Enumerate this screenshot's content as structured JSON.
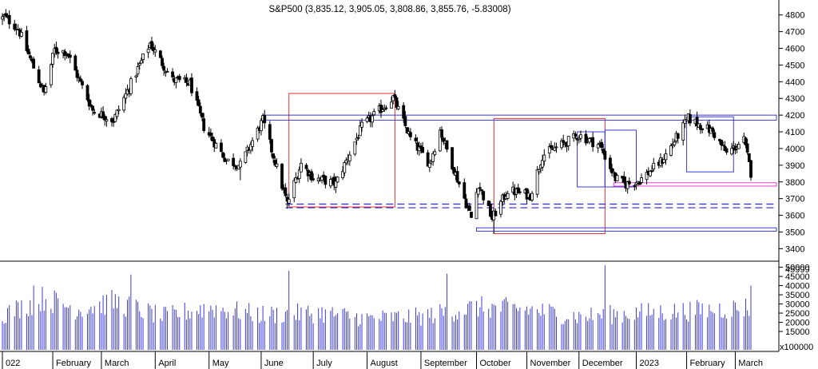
{
  "chart_data": {
    "type": "candlestick",
    "title": "S&P500 (3,835.12, 3,905.05, 3,808.86, 3,855.76, -5.83008)",
    "price_axis": {
      "ylim": [
        3330,
        4880
      ],
      "ticks": [
        3400,
        3500,
        3600,
        3700,
        3800,
        3900,
        4000,
        4100,
        4200,
        4300,
        4400,
        4500,
        4600,
        4700,
        4800
      ]
    },
    "volume_axis": {
      "ylim": [
        5000,
        52000
      ],
      "ticks": [
        15000,
        20000,
        25000,
        30000,
        35000,
        40000,
        45000,
        50000
      ],
      "tick_labels": [
        "15000",
        "20000",
        "25000",
        "30000",
        "35000",
        "40000",
        "45000",
        "50000"
      ],
      "top_label": "45999",
      "multiplier_label": "x100000"
    },
    "x_axis": {
      "start": "2022-01-03",
      "end": "2023-03-10",
      "labels": [
        {
          "date": "2022-01-03",
          "text": "022"
        },
        {
          "date": "2022-02-01",
          "text": "February"
        },
        {
          "date": "2022-03-01",
          "text": "March"
        },
        {
          "date": "2022-04-01",
          "text": "April"
        },
        {
          "date": "2022-05-02",
          "text": "May"
        },
        {
          "date": "2022-06-01",
          "text": "June"
        },
        {
          "date": "2022-07-01",
          "text": "July"
        },
        {
          "date": "2022-08-01",
          "text": "August"
        },
        {
          "date": "2022-09-01",
          "text": "September"
        },
        {
          "date": "2022-10-03",
          "text": "October"
        },
        {
          "date": "2022-11-01",
          "text": "November"
        },
        {
          "date": "2022-12-01",
          "text": "December"
        },
        {
          "date": "2023-01-03",
          "text": "2023"
        },
        {
          "date": "2023-02-01",
          "text": "February"
        },
        {
          "date": "2023-03-01",
          "text": "March"
        }
      ]
    },
    "path": [
      [
        "2022-01-03",
        4780
      ],
      [
        "2022-01-04",
        4790
      ],
      [
        "2022-01-12",
        4720
      ],
      [
        "2022-01-27",
        4330
      ],
      [
        "2022-02-02",
        4590
      ],
      [
        "2022-02-09",
        4580
      ],
      [
        "2022-02-24",
        4230
      ],
      [
        "2022-03-08",
        4170
      ],
      [
        "2022-03-29",
        4630
      ],
      [
        "2022-04-11",
        4410
      ],
      [
        "2022-04-21",
        4390
      ],
      [
        "2022-04-29",
        4130
      ],
      [
        "2022-05-12",
        3930
      ],
      [
        "2022-05-20",
        3900
      ],
      [
        "2022-06-02",
        4170
      ],
      [
        "2022-06-16",
        3670
      ],
      [
        "2022-06-24",
        3910
      ],
      [
        "2022-07-01",
        3825
      ],
      [
        "2022-07-14",
        3790
      ],
      [
        "2022-07-29",
        4130
      ],
      [
        "2022-08-16",
        4305
      ],
      [
        "2022-08-26",
        4060
      ],
      [
        "2022-09-06",
        3910
      ],
      [
        "2022-09-12",
        4110
      ],
      [
        "2022-09-30",
        3585
      ],
      [
        "2022-10-04",
        3790
      ],
      [
        "2022-10-12",
        3580
      ],
      [
        "2022-10-21",
        3750
      ],
      [
        "2022-11-03",
        3720
      ],
      [
        "2022-11-10",
        3960
      ],
      [
        "2022-12-01",
        4080
      ],
      [
        "2022-12-13",
        4020
      ],
      [
        "2022-12-22",
        3820
      ],
      [
        "2022-12-28",
        3785
      ],
      [
        "2023-01-05",
        3810
      ],
      [
        "2023-01-18",
        3930
      ],
      [
        "2023-02-02",
        4180
      ],
      [
        "2023-02-16",
        4100
      ],
      [
        "2023-02-24",
        3970
      ],
      [
        "2023-03-06",
        4050
      ],
      [
        "2023-03-10",
        3855
      ]
    ],
    "spikes": [
      [
        "2022-01-27",
        4330
      ],
      [
        "2022-03-08",
        4130
      ],
      [
        "2022-05-20",
        3810
      ],
      [
        "2022-06-16",
        3640
      ],
      [
        "2022-10-13",
        3490
      ],
      [
        "2022-12-28",
        3770
      ]
    ],
    "volume_profile": [
      [
        "2022-01-03",
        24000
      ],
      [
        "2022-01-27",
        33000
      ],
      [
        "2022-02-15",
        27000
      ],
      [
        "2022-03-08",
        31000
      ],
      [
        "2022-04-05",
        23000
      ],
      [
        "2022-05-02",
        28000
      ],
      [
        "2022-06-01",
        24000
      ],
      [
        "2022-07-05",
        25000
      ],
      [
        "2022-08-02",
        22000
      ],
      [
        "2022-09-01",
        23000
      ],
      [
        "2022-10-03",
        28000
      ],
      [
        "2022-11-01",
        27000
      ],
      [
        "2022-12-01",
        23000
      ],
      [
        "2023-01-03",
        25000
      ],
      [
        "2023-02-01",
        26000
      ],
      [
        "2023-03-10",
        28000
      ]
    ],
    "volume_spikes": [
      [
        "2022-01-21",
        40000
      ],
      [
        "2022-03-18",
        46000
      ],
      [
        "2022-06-17",
        48000
      ],
      [
        "2022-09-16",
        46500
      ],
      [
        "2022-12-16",
        51000
      ],
      [
        "2023-03-10",
        40000
      ]
    ],
    "annotations": {
      "red_boxes": [
        {
          "x0": "2022-06-17",
          "x1": "2022-08-17",
          "y0": 3650,
          "y1": 4330
        },
        {
          "x0": "2022-10-13",
          "x1": "2022-12-16",
          "y0": 3490,
          "y1": 4180
        }
      ],
      "blue_boxes": [
        {
          "x0": "2022-11-30",
          "x1": "2022-12-16",
          "y0": 3770,
          "y1": 4100
        },
        {
          "x0": "2022-12-16",
          "x1": "2023-01-03",
          "y0": 3770,
          "y1": 4110
        },
        {
          "x0": "2023-02-01",
          "x1": "2023-02-28",
          "y0": 3860,
          "y1": 4190
        }
      ],
      "blue_channels": [
        {
          "x0": "2022-06-02",
          "x1": "2023-03-31",
          "y0": 4170,
          "y1": 4200
        },
        {
          "x0": "2022-10-03",
          "x1": "2023-03-31",
          "y0": 3505,
          "y1": 3525
        }
      ],
      "blue_dashed_lines": [
        {
          "x0": "2022-06-15",
          "x1": "2023-03-31",
          "y": 3667
        },
        {
          "x0": "2022-06-15",
          "x1": "2023-03-31",
          "y": 3645
        }
      ],
      "magenta_channel": {
        "x0": "2022-12-21",
        "x1": "2023-03-31",
        "y0": 3775,
        "y1": 3795
      }
    }
  }
}
